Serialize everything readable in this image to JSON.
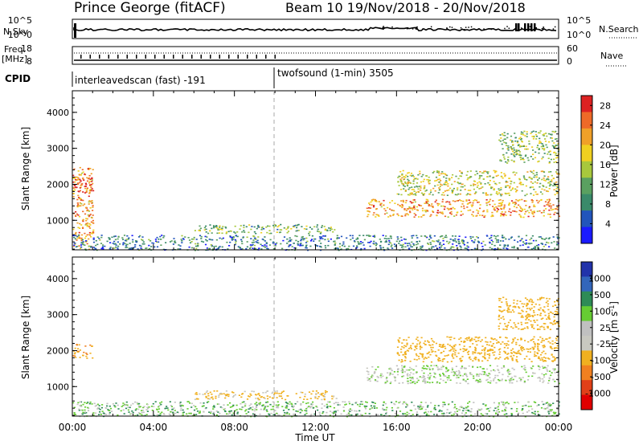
{
  "header": {
    "station": "Prince George (fitACF)",
    "beam_date": "Beam 10  19/Nov/2018 - 20/Nov/2018"
  },
  "status_panels": {
    "nsky_label": "N.Sky",
    "nsearch_label": "N.Search",
    "nsky_ticks": [
      "10^5",
      "10^0"
    ],
    "nsearch_ticks": [
      "10^5",
      "10^0"
    ],
    "freq_label_1": "Freq.",
    "freq_label_2": "[MHz]",
    "freq_ticks": [
      "18",
      "8"
    ],
    "nave_label": "Nave",
    "nave_ticks": [
      "60",
      "0"
    ],
    "cpid_label": "CPID",
    "cpid_segments": [
      {
        "name": "interleavedscan (fast) -191",
        "start_hour": 0,
        "end_hour": 9.8
      },
      {
        "name": "twofsound (1-min) 3505",
        "start_hour": 9.8,
        "end_hour": 24
      }
    ]
  },
  "colors": {
    "power_scale": [
      "#1a1aff",
      "#2255bb",
      "#3a8a6a",
      "#5aa060",
      "#a8c83c",
      "#f0d020",
      "#f0a028",
      "#ee6a28",
      "#dd2222"
    ],
    "velocity_scale": [
      "#2233aa",
      "#3366bb",
      "#2e8b57",
      "#66cc33",
      "#c0c0c0",
      "#c8c8c0",
      "#f0b020",
      "#f08020",
      "#e04018",
      "#e00000"
    ]
  },
  "chart_data": [
    {
      "type": "heatmap",
      "title": "",
      "xlabel": "",
      "ylabel": "Slant Range [km]",
      "xlim": [
        0,
        24
      ],
      "ylim": [
        180,
        4600
      ],
      "y_ticks": [
        "1000",
        "2000",
        "3000",
        "4000"
      ],
      "colorbar": {
        "label": "Power [dB]",
        "ticks": [
          "4",
          "8",
          "12",
          "16",
          "20",
          "24",
          "28"
        ],
        "range": [
          0,
          30
        ]
      },
      "regions": [
        {
          "x": [
            0,
            1.0
          ],
          "y": [
            200,
            2500
          ],
          "level": 22
        },
        {
          "x": [
            0,
            1.0
          ],
          "y": [
            1800,
            2200
          ],
          "level": 28
        },
        {
          "x": [
            0,
            24
          ],
          "y": [
            180,
            600
          ],
          "level": 8
        },
        {
          "x": [
            6,
            13
          ],
          "y": [
            650,
            900
          ],
          "level": 12
        },
        {
          "x": [
            14.5,
            24
          ],
          "y": [
            1100,
            1600
          ],
          "level": 22
        },
        {
          "x": [
            16,
            24
          ],
          "y": [
            1700,
            2400
          ],
          "level": 16
        },
        {
          "x": [
            21,
            24
          ],
          "y": [
            2600,
            3500
          ],
          "level": 14
        }
      ]
    },
    {
      "type": "heatmap",
      "title": "",
      "xlabel": "Time UT",
      "ylabel": "Slant Range [km]",
      "xlim": [
        0,
        24
      ],
      "ylim": [
        180,
        4600
      ],
      "x_ticks": [
        "00:00",
        "04:00",
        "08:00",
        "12:00",
        "16:00",
        "20:00",
        "00:00"
      ],
      "y_ticks": [
        "1000",
        "2000",
        "3000",
        "4000"
      ],
      "colorbar": {
        "label": "Velocity [m s^-1]",
        "ticks": [
          "1000",
          "500",
          "100",
          "25",
          "-25",
          "-100",
          "-500",
          "-1000"
        ],
        "range": [
          -1000,
          1000
        ]
      },
      "regions": [
        {
          "x": [
            0,
            1.0
          ],
          "y": [
            1800,
            2200
          ],
          "level": -500
        },
        {
          "x": [
            0,
            24
          ],
          "y": [
            180,
            600
          ],
          "level": 50
        },
        {
          "x": [
            6,
            13
          ],
          "y": [
            650,
            900
          ],
          "level": -150
        },
        {
          "x": [
            14.5,
            24
          ],
          "y": [
            1100,
            1600
          ],
          "level": 0
        },
        {
          "x": [
            16,
            24
          ],
          "y": [
            1700,
            2400
          ],
          "level": -300
        },
        {
          "x": [
            21,
            24
          ],
          "y": [
            2600,
            3500
          ],
          "level": -400
        }
      ]
    }
  ]
}
